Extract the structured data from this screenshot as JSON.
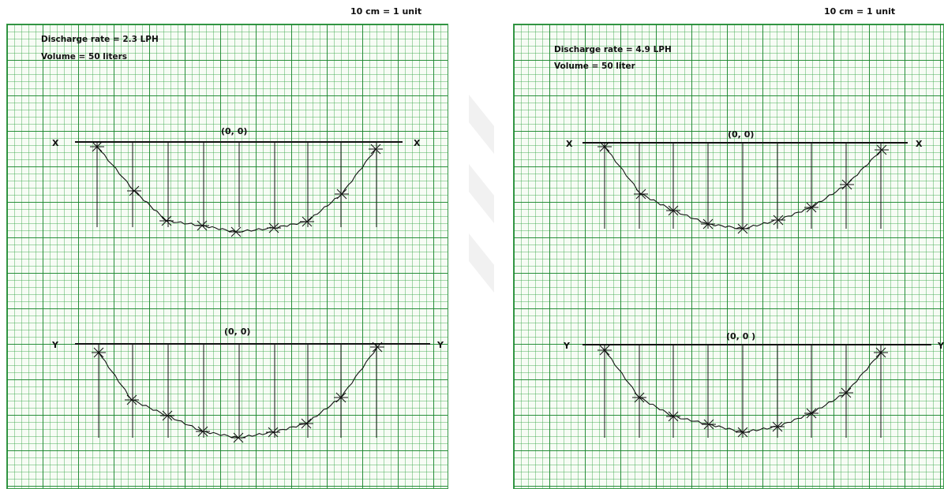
{
  "left_sheet": {
    "scale_note": "10 cm = 1 unit",
    "discharge_rate": "Discharge rate = 2.3 LPH",
    "volume": "Volume = 50 liters",
    "x_profile": {
      "axis_left": "X",
      "axis_right": "X",
      "origin": "(0, 0)"
    },
    "y_profile": {
      "axis_left": "Y",
      "axis_right": "Y",
      "origin": "(0, 0)"
    }
  },
  "right_sheet": {
    "scale_note": "10 cm = 1 unit",
    "discharge_rate": "Discharge rate = 4.9 LPH",
    "volume": "Volume = 50 liter",
    "x_profile": {
      "axis_left": "X",
      "axis_right": "X",
      "origin": "(0, 0)"
    },
    "y_profile": {
      "axis_left": "Y",
      "axis_right": "Y",
      "origin": "(0, 0 )"
    }
  },
  "colors": {
    "grid": "#3a9a4a",
    "ink": "#111111",
    "paper": "#f7fcf5"
  }
}
